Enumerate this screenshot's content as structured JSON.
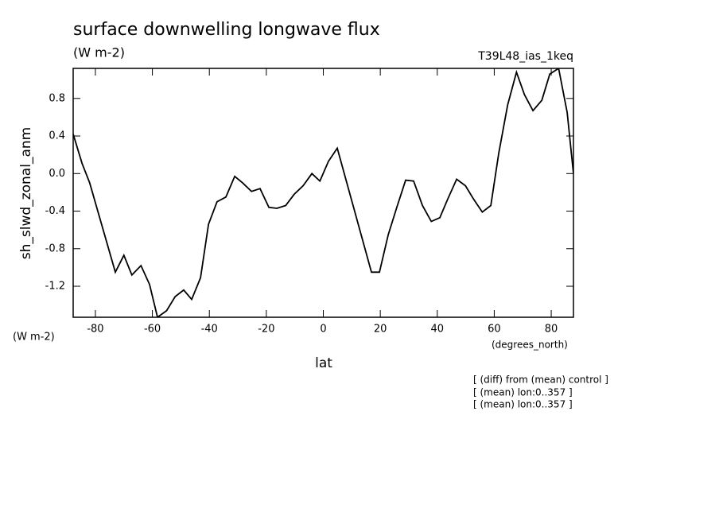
{
  "chart_data": {
    "type": "line",
    "title": "surface downwelling longwave flux",
    "subtitle": "(W m-2)",
    "dataset_label": "T39L48_ias_1keq",
    "y_label": "sh_slwd_zonal_anm",
    "y_units": "(W m-2)",
    "x_label": "lat",
    "x_units": "(degrees_north)",
    "notes": [
      "[ (diff) from (mean) control ]",
      "[ (mean) lon:0..357 ]",
      "[ (mean) lon:0..357 ]"
    ],
    "xlim": [
      -87.8,
      87.8
    ],
    "ylim": [
      -1.53,
      1.12
    ],
    "xticks": [
      -80,
      -60,
      -40,
      -20,
      0,
      20,
      40,
      60,
      80
    ],
    "yticks": [
      -1.2,
      -0.8,
      -0.4,
      {
        "value": 0,
        "label": "0.0"
      },
      0.4,
      0.8
    ],
    "color": "#000000",
    "x": [
      -87.8,
      -84.7,
      -82,
      -73,
      -70,
      -67.2,
      -64,
      -61,
      -58.2,
      -55,
      -52,
      -49,
      -46.2,
      -43.1,
      -40.3,
      -37.3,
      -34.2,
      -31.1,
      -28.3,
      -25.2,
      -22.2,
      -19.1,
      -16.3,
      -13.2,
      -10.2,
      -7.1,
      -4.0,
      -1.2,
      1.8,
      4.9,
      16.9,
      19.7,
      22.8,
      25.9,
      28.9,
      31.7,
      34.8,
      37.9,
      40.9,
      43.7,
      46.8,
      49.9,
      52.7,
      55.8,
      58.8,
      61.6,
      64.7,
      67.8,
      70.6,
      73.6,
      76.7,
      79.5,
      82.6,
      85.6,
      87.8
    ],
    "values": [
      0.42,
      0.11,
      -0.1,
      -1.05,
      -0.87,
      -1.08,
      -0.98,
      -1.18,
      -1.53,
      -1.46,
      -1.31,
      -1.24,
      -1.34,
      -1.11,
      -0.54,
      -0.3,
      -0.25,
      -0.03,
      -0.1,
      -0.19,
      -0.16,
      -0.36,
      -0.37,
      -0.34,
      -0.22,
      -0.13,
      0.0,
      -0.08,
      0.13,
      0.27,
      -1.05,
      -1.05,
      -0.65,
      -0.35,
      -0.07,
      -0.08,
      -0.34,
      -0.51,
      -0.47,
      -0.27,
      -0.06,
      -0.13,
      -0.27,
      -0.41,
      -0.34,
      0.22,
      0.73,
      1.08,
      0.84,
      0.67,
      0.78,
      1.06,
      1.12,
      0.65,
      0.0
    ]
  }
}
